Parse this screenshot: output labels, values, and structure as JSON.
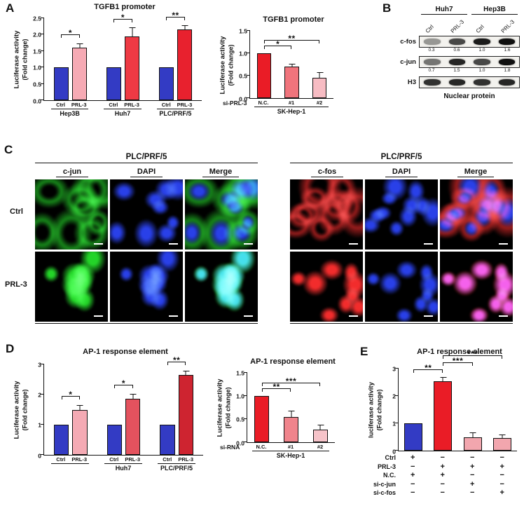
{
  "panels": {
    "A": {
      "label": "A"
    },
    "B": {
      "label": "B",
      "groups": [
        "Huh7",
        "Hep3B"
      ],
      "lanes": [
        "Ctrl",
        "PRL-3",
        "Ctrl",
        "PRL-3"
      ],
      "rows": [
        {
          "name": "c-fos",
          "values": [
            "0.3",
            "0.6",
            "1.0",
            "1.6"
          ],
          "intensities": [
            0.4,
            0.75,
            0.95,
            1.0
          ]
        },
        {
          "name": "c-jun",
          "values": [
            "0.7",
            "1.5",
            "1.0",
            "1.8"
          ],
          "intensities": [
            0.55,
            0.9,
            0.75,
            1.0
          ]
        },
        {
          "name": "H3",
          "values": [],
          "intensities": [
            0.85,
            0.9,
            0.85,
            0.9
          ]
        }
      ],
      "footer": "Nuclear protein"
    },
    "C": {
      "label": "C",
      "row_labels": [
        "Ctrl",
        "PRL-3"
      ],
      "left": {
        "title": "PLC/PRF/5",
        "columns": [
          "c-jun",
          "DAPI",
          "Merge"
        ],
        "marker_color": "#25e02a",
        "dapi_color": "#2b43f5",
        "seed": 7
      },
      "right": {
        "title": "PLC/PRF/5",
        "columns": [
          "c-fos",
          "DAPI",
          "Merge"
        ],
        "marker_color": "#ff2e2e",
        "dapi_color": "#2b43f5",
        "seed": 31
      }
    },
    "D": {
      "label": "D"
    },
    "E": {
      "label": "E"
    }
  },
  "chart_data": [
    {
      "id": "A_left",
      "type": "bar",
      "title": "TGFB1 promoter",
      "ylabel": "Luciferase activity",
      "ylabel2": "(Fold change)",
      "ylim": [
        0,
        2.5
      ],
      "yticks": [
        "0.0",
        "0.5",
        "1.0",
        "1.5",
        "2.0",
        "2.5"
      ],
      "groups": [
        {
          "label": "Hep3B",
          "sig": "*",
          "bars": [
            {
              "label": "Ctrl",
              "value": 1.0,
              "color": "#333bc4"
            },
            {
              "label": "PRL-3",
              "value": 1.6,
              "err": 0.12,
              "color": "#f6aab4"
            }
          ]
        },
        {
          "label": "Huh7",
          "sig": "*",
          "bars": [
            {
              "label": "Ctrl",
              "value": 1.0,
              "color": "#333bc4"
            },
            {
              "label": "PRL-3",
              "value": 1.95,
              "err": 0.25,
              "color": "#ee3a44"
            }
          ]
        },
        {
          "label": "PLC/PRF/5",
          "sig": "**",
          "bars": [
            {
              "label": "Ctrl",
              "value": 1.0,
              "color": "#333bc4"
            },
            {
              "label": "PRL-3",
              "value": 2.15,
              "err": 0.12,
              "color": "#e8212e"
            }
          ]
        }
      ]
    },
    {
      "id": "A_right",
      "type": "bar",
      "title": "TGFB1 promoter",
      "ylabel": "Luciferase activity",
      "ylabel2": "(Fold change)",
      "ylim": [
        0,
        1.5
      ],
      "yticks": [
        "0.0",
        "0.5",
        "1.0",
        "1.5"
      ],
      "xprefix": "si-PRL-3",
      "group_label": "SK-Hep-1",
      "bars": [
        {
          "label": "N.C.",
          "value": 1.0,
          "color": "#ea1c26"
        },
        {
          "label": "#1",
          "value": 0.7,
          "err": 0.05,
          "color": "#f0747c"
        },
        {
          "label": "#2",
          "value": 0.45,
          "err": 0.12,
          "color": "#f7bcc3"
        }
      ],
      "sigs": [
        {
          "from": 0,
          "to": 1,
          "label": "*"
        },
        {
          "from": 0,
          "to": 2,
          "label": "**"
        }
      ]
    },
    {
      "id": "D_left",
      "type": "bar",
      "title": "AP-1 response element",
      "ylabel": "Luciferase activity",
      "ylabel2": "(Fold change)",
      "ylim": [
        0,
        3
      ],
      "yticks": [
        "0",
        "1",
        "2",
        "3"
      ],
      "groups": [
        {
          "label": "",
          "sig": "*",
          "bars": [
            {
              "label": "Ctrl",
              "value": 1.0,
              "color": "#333bc4"
            },
            {
              "label": "PRL-3",
              "value": 1.48,
              "err": 0.15,
              "color": "#f4aab4"
            }
          ]
        },
        {
          "label": "Huh7",
          "sig": "*",
          "bars": [
            {
              "label": "Ctrl",
              "value": 1.0,
              "color": "#333bc4"
            },
            {
              "label": "PRL-3",
              "value": 1.85,
              "err": 0.15,
              "color": "#e4525e"
            }
          ]
        },
        {
          "label": "PLC/PRF/5",
          "sig": "**",
          "bars": [
            {
              "label": "Ctrl",
              "value": 1.0,
              "color": "#333bc4"
            },
            {
              "label": "PRL-3",
              "value": 2.65,
              "err": 0.12,
              "color": "#ce2430"
            }
          ]
        }
      ]
    },
    {
      "id": "D_right",
      "type": "bar",
      "title": "AP-1 response element",
      "ylabel": "Luciferase activity",
      "ylabel2": "(Fold change)",
      "ylim": [
        0,
        1.5
      ],
      "yticks": [
        "0.0",
        "0.5",
        "1.0",
        "1.5"
      ],
      "xprefix": "si-RNA",
      "group_label": "SK-Hep-1",
      "bars": [
        {
          "label": "N.C.",
          "value": 1.0,
          "color": "#ea1c26"
        },
        {
          "label": "#1",
          "value": 0.55,
          "err": 0.12,
          "color": "#f0848c"
        },
        {
          "label": "#2",
          "value": 0.27,
          "err": 0.1,
          "color": "#f6c3c9"
        }
      ],
      "sigs": [
        {
          "from": 0,
          "to": 1,
          "label": "**"
        },
        {
          "from": 0,
          "to": 2,
          "label": "***"
        }
      ]
    },
    {
      "id": "E",
      "type": "bar",
      "title": "AP-1 response element",
      "ylabel": "luciferase activity",
      "ylabel2": "(Fold change)",
      "ylim": [
        0,
        3
      ],
      "yticks": [
        "0",
        "1",
        "2",
        "3"
      ],
      "bars": [
        {
          "label": "",
          "value": 1.0,
          "color": "#333bc4"
        },
        {
          "label": "",
          "value": 2.55,
          "err": 0.12,
          "color": "#ea1c26"
        },
        {
          "label": "",
          "value": 0.5,
          "err": 0.15,
          "color": "#f2a6ae"
        },
        {
          "label": "",
          "value": 0.45,
          "err": 0.12,
          "color": "#f2a6ae"
        }
      ],
      "sigs": [
        {
          "from": 0,
          "to": 1,
          "label": "**"
        },
        {
          "from": 1,
          "to": 2,
          "label": "***"
        },
        {
          "from": 1,
          "to": 3,
          "label": "***"
        }
      ],
      "conditions": [
        {
          "label": "Ctrl",
          "values": [
            "+",
            "−",
            "−",
            "−"
          ]
        },
        {
          "label": "PRL-3",
          "values": [
            "−",
            "+",
            "+",
            "+"
          ]
        },
        {
          "label": "N.C.",
          "values": [
            "+",
            "+",
            "−",
            "−"
          ]
        },
        {
          "label": "si-c-jun",
          "values": [
            "−",
            "−",
            "+",
            "−"
          ]
        },
        {
          "label": "si-c-fos",
          "values": [
            "−",
            "−",
            "−",
            "+"
          ]
        }
      ]
    }
  ]
}
